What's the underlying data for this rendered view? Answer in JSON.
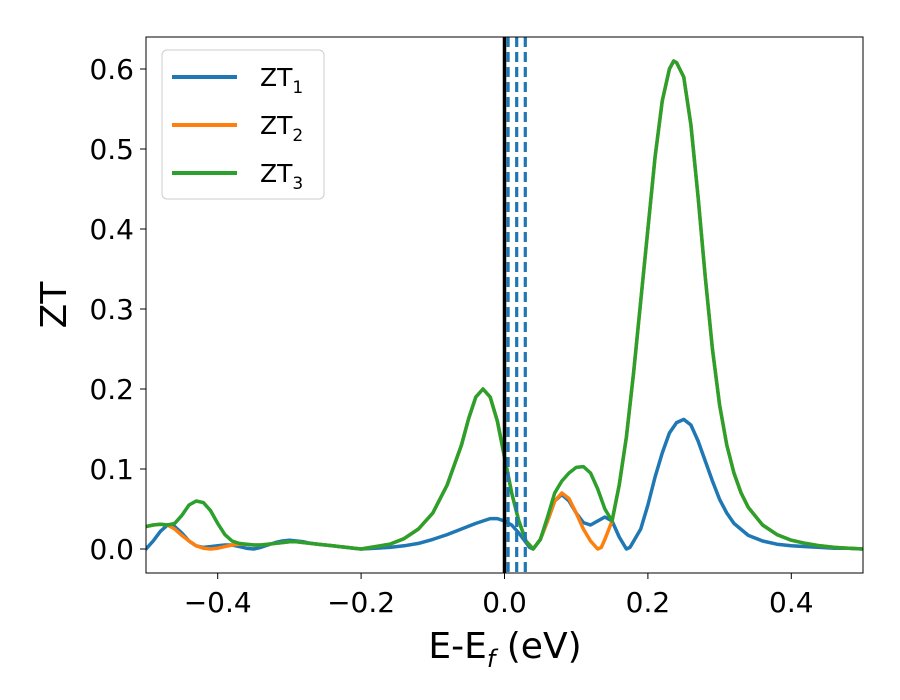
{
  "chart_data": {
    "type": "line",
    "title": "",
    "xlabel": "E-E_f (eV)",
    "xlabel_main": "E-E",
    "xlabel_sub": "f",
    "xlabel_unit": " (eV)",
    "ylabel": "ZT",
    "xlim": [
      -0.5,
      0.5
    ],
    "ylim": [
      -0.03,
      0.64
    ],
    "xticks": [
      -0.4,
      -0.2,
      0.0,
      0.2,
      0.4
    ],
    "xtick_labels": [
      "−0.4",
      "−0.2",
      "0.0",
      "0.2",
      "0.4"
    ],
    "yticks": [
      0.0,
      0.1,
      0.2,
      0.3,
      0.4,
      0.5,
      0.6
    ],
    "ytick_labels": [
      "0.0",
      "0.1",
      "0.2",
      "0.3",
      "0.4",
      "0.5",
      "0.6"
    ],
    "grid": false,
    "legend_position": "top-left",
    "vertical_lines": [
      {
        "x": 0.0,
        "style": "solid",
        "color": "#000000"
      },
      {
        "x": 0.005,
        "style": "dashed",
        "color": "#1f77b4"
      },
      {
        "x": 0.017,
        "style": "dashed",
        "color": "#1f77b4"
      },
      {
        "x": 0.029,
        "style": "dashed",
        "color": "#1f77b4"
      }
    ],
    "series": [
      {
        "name": "ZT_1",
        "legend_main": "ZT",
        "legend_sub": "1",
        "color": "#1f77b4",
        "points": [
          [
            -0.5,
            0.0
          ],
          [
            -0.49,
            0.01
          ],
          [
            -0.48,
            0.022
          ],
          [
            -0.47,
            0.03
          ],
          [
            -0.46,
            0.028
          ],
          [
            -0.45,
            0.02
          ],
          [
            -0.44,
            0.01
          ],
          [
            -0.43,
            0.004
          ],
          [
            -0.42,
            0.002
          ],
          [
            -0.41,
            0.003
          ],
          [
            -0.4,
            0.004
          ],
          [
            -0.39,
            0.005
          ],
          [
            -0.38,
            0.005
          ],
          [
            -0.37,
            0.003
          ],
          [
            -0.36,
            0.001
          ],
          [
            -0.35,
            0.0
          ],
          [
            -0.34,
            0.002
          ],
          [
            -0.33,
            0.005
          ],
          [
            -0.32,
            0.008
          ],
          [
            -0.31,
            0.01
          ],
          [
            -0.3,
            0.011
          ],
          [
            -0.29,
            0.01
          ],
          [
            -0.28,
            0.009
          ],
          [
            -0.27,
            0.007
          ],
          [
            -0.26,
            0.006
          ],
          [
            -0.25,
            0.005
          ],
          [
            -0.24,
            0.004
          ],
          [
            -0.23,
            0.003
          ],
          [
            -0.22,
            0.002
          ],
          [
            -0.21,
            0.001
          ],
          [
            -0.2,
            0.0
          ],
          [
            -0.18,
            0.001
          ],
          [
            -0.16,
            0.002
          ],
          [
            -0.14,
            0.004
          ],
          [
            -0.12,
            0.007
          ],
          [
            -0.1,
            0.012
          ],
          [
            -0.08,
            0.018
          ],
          [
            -0.06,
            0.025
          ],
          [
            -0.04,
            0.032
          ],
          [
            -0.03,
            0.035
          ],
          [
            -0.02,
            0.038
          ],
          [
            -0.01,
            0.038
          ],
          [
            0.0,
            0.035
          ],
          [
            0.01,
            0.03
          ],
          [
            0.02,
            0.02
          ],
          [
            0.03,
            0.008
          ],
          [
            0.035,
            0.002
          ],
          [
            0.04,
            0.0
          ],
          [
            0.05,
            0.012
          ],
          [
            0.06,
            0.035
          ],
          [
            0.07,
            0.06
          ],
          [
            0.08,
            0.068
          ],
          [
            0.09,
            0.06
          ],
          [
            0.1,
            0.045
          ],
          [
            0.11,
            0.033
          ],
          [
            0.12,
            0.03
          ],
          [
            0.13,
            0.035
          ],
          [
            0.14,
            0.04
          ],
          [
            0.15,
            0.035
          ],
          [
            0.16,
            0.015
          ],
          [
            0.17,
            0.0
          ],
          [
            0.175,
            0.002
          ],
          [
            0.19,
            0.025
          ],
          [
            0.2,
            0.055
          ],
          [
            0.21,
            0.09
          ],
          [
            0.22,
            0.12
          ],
          [
            0.23,
            0.145
          ],
          [
            0.24,
            0.158
          ],
          [
            0.25,
            0.162
          ],
          [
            0.26,
            0.155
          ],
          [
            0.27,
            0.135
          ],
          [
            0.28,
            0.11
          ],
          [
            0.29,
            0.085
          ],
          [
            0.3,
            0.062
          ],
          [
            0.31,
            0.045
          ],
          [
            0.32,
            0.032
          ],
          [
            0.34,
            0.017
          ],
          [
            0.36,
            0.01
          ],
          [
            0.38,
            0.006
          ],
          [
            0.4,
            0.004
          ],
          [
            0.42,
            0.003
          ],
          [
            0.44,
            0.002
          ],
          [
            0.46,
            0.001
          ],
          [
            0.48,
            0.001
          ],
          [
            0.5,
            0.0
          ]
        ]
      },
      {
        "name": "ZT_2",
        "legend_main": "ZT",
        "legend_sub": "2",
        "color": "#ff7f0e",
        "points": [
          [
            -0.5,
            0.028
          ],
          [
            -0.49,
            0.03
          ],
          [
            -0.48,
            0.031
          ],
          [
            -0.47,
            0.03
          ],
          [
            -0.46,
            0.025
          ],
          [
            -0.45,
            0.017
          ],
          [
            -0.44,
            0.01
          ],
          [
            -0.43,
            0.004
          ],
          [
            -0.42,
            0.001
          ],
          [
            -0.41,
            0.0
          ],
          [
            -0.4,
            0.001
          ],
          [
            -0.39,
            0.003
          ],
          [
            -0.38,
            0.005
          ],
          [
            -0.37,
            0.006
          ],
          [
            -0.36,
            0.006
          ],
          [
            -0.35,
            0.005
          ],
          [
            -0.34,
            0.005
          ],
          [
            -0.33,
            0.006
          ],
          [
            -0.32,
            0.007
          ],
          [
            -0.31,
            0.008
          ],
          [
            -0.3,
            0.009
          ],
          [
            -0.29,
            0.009
          ],
          [
            -0.28,
            0.008
          ],
          [
            -0.27,
            0.007
          ],
          [
            -0.26,
            0.006
          ],
          [
            -0.25,
            0.005
          ],
          [
            -0.24,
            0.004
          ],
          [
            -0.23,
            0.003
          ],
          [
            -0.22,
            0.002
          ],
          [
            -0.21,
            0.001
          ],
          [
            -0.2,
            0.0
          ],
          [
            -0.18,
            0.003
          ],
          [
            -0.16,
            0.006
          ],
          [
            -0.14,
            0.013
          ],
          [
            -0.12,
            0.025
          ],
          [
            -0.1,
            0.045
          ],
          [
            -0.08,
            0.08
          ],
          [
            -0.06,
            0.13
          ],
          [
            -0.05,
            0.163
          ],
          [
            -0.04,
            0.19
          ],
          [
            -0.03,
            0.2
          ],
          [
            -0.02,
            0.19
          ],
          [
            -0.01,
            0.16
          ],
          [
            0.0,
            0.115
          ],
          [
            0.01,
            0.07
          ],
          [
            0.02,
            0.035
          ],
          [
            0.03,
            0.01
          ],
          [
            0.04,
            0.0
          ],
          [
            0.05,
            0.012
          ],
          [
            0.06,
            0.035
          ],
          [
            0.07,
            0.06
          ],
          [
            0.08,
            0.07
          ],
          [
            0.09,
            0.063
          ],
          [
            0.1,
            0.045
          ],
          [
            0.11,
            0.025
          ],
          [
            0.12,
            0.01
          ],
          [
            0.13,
            0.0
          ],
          [
            0.135,
            0.002
          ],
          [
            0.14,
            0.012
          ],
          [
            0.15,
            0.035
          ],
          [
            0.16,
            0.08
          ],
          [
            0.17,
            0.14
          ],
          [
            0.18,
            0.22
          ],
          [
            0.19,
            0.31
          ],
          [
            0.2,
            0.4
          ],
          [
            0.21,
            0.49
          ],
          [
            0.22,
            0.56
          ],
          [
            0.23,
            0.6
          ],
          [
            0.236,
            0.61
          ],
          [
            0.24,
            0.608
          ],
          [
            0.25,
            0.59
          ],
          [
            0.26,
            0.53
          ],
          [
            0.27,
            0.44
          ],
          [
            0.28,
            0.34
          ],
          [
            0.29,
            0.25
          ],
          [
            0.3,
            0.18
          ],
          [
            0.31,
            0.13
          ],
          [
            0.32,
            0.095
          ],
          [
            0.33,
            0.07
          ],
          [
            0.34,
            0.052
          ],
          [
            0.36,
            0.03
          ],
          [
            0.38,
            0.018
          ],
          [
            0.4,
            0.011
          ],
          [
            0.42,
            0.007
          ],
          [
            0.44,
            0.004
          ],
          [
            0.46,
            0.002
          ],
          [
            0.48,
            0.001
          ],
          [
            0.5,
            0.0
          ]
        ]
      },
      {
        "name": "ZT_3",
        "legend_main": "ZT",
        "legend_sub": "3",
        "color": "#2ca02c",
        "points": [
          [
            -0.5,
            0.028
          ],
          [
            -0.49,
            0.03
          ],
          [
            -0.48,
            0.031
          ],
          [
            -0.47,
            0.03
          ],
          [
            -0.46,
            0.032
          ],
          [
            -0.45,
            0.042
          ],
          [
            -0.44,
            0.055
          ],
          [
            -0.43,
            0.06
          ],
          [
            -0.42,
            0.058
          ],
          [
            -0.41,
            0.048
          ],
          [
            -0.4,
            0.032
          ],
          [
            -0.39,
            0.018
          ],
          [
            -0.38,
            0.01
          ],
          [
            -0.37,
            0.007
          ],
          [
            -0.36,
            0.006
          ],
          [
            -0.35,
            0.005
          ],
          [
            -0.34,
            0.005
          ],
          [
            -0.33,
            0.006
          ],
          [
            -0.32,
            0.007
          ],
          [
            -0.31,
            0.008
          ],
          [
            -0.3,
            0.009
          ],
          [
            -0.29,
            0.009
          ],
          [
            -0.28,
            0.008
          ],
          [
            -0.27,
            0.007
          ],
          [
            -0.26,
            0.006
          ],
          [
            -0.25,
            0.005
          ],
          [
            -0.24,
            0.004
          ],
          [
            -0.23,
            0.003
          ],
          [
            -0.22,
            0.002
          ],
          [
            -0.21,
            0.001
          ],
          [
            -0.2,
            0.0
          ],
          [
            -0.18,
            0.003
          ],
          [
            -0.16,
            0.006
          ],
          [
            -0.14,
            0.013
          ],
          [
            -0.12,
            0.025
          ],
          [
            -0.1,
            0.045
          ],
          [
            -0.08,
            0.08
          ],
          [
            -0.06,
            0.13
          ],
          [
            -0.05,
            0.163
          ],
          [
            -0.04,
            0.19
          ],
          [
            -0.03,
            0.2
          ],
          [
            -0.02,
            0.19
          ],
          [
            -0.01,
            0.16
          ],
          [
            0.0,
            0.115
          ],
          [
            0.01,
            0.07
          ],
          [
            0.02,
            0.035
          ],
          [
            0.03,
            0.01
          ],
          [
            0.04,
            0.0
          ],
          [
            0.05,
            0.012
          ],
          [
            0.06,
            0.04
          ],
          [
            0.07,
            0.07
          ],
          [
            0.08,
            0.085
          ],
          [
            0.09,
            0.095
          ],
          [
            0.1,
            0.102
          ],
          [
            0.11,
            0.103
          ],
          [
            0.12,
            0.095
          ],
          [
            0.13,
            0.075
          ],
          [
            0.14,
            0.05
          ],
          [
            0.15,
            0.035
          ],
          [
            0.16,
            0.08
          ],
          [
            0.17,
            0.14
          ],
          [
            0.18,
            0.22
          ],
          [
            0.19,
            0.31
          ],
          [
            0.2,
            0.4
          ],
          [
            0.21,
            0.49
          ],
          [
            0.22,
            0.56
          ],
          [
            0.23,
            0.6
          ],
          [
            0.236,
            0.61
          ],
          [
            0.24,
            0.608
          ],
          [
            0.25,
            0.59
          ],
          [
            0.26,
            0.53
          ],
          [
            0.27,
            0.44
          ],
          [
            0.28,
            0.34
          ],
          [
            0.29,
            0.25
          ],
          [
            0.3,
            0.18
          ],
          [
            0.31,
            0.13
          ],
          [
            0.32,
            0.095
          ],
          [
            0.33,
            0.07
          ],
          [
            0.34,
            0.052
          ],
          [
            0.36,
            0.03
          ],
          [
            0.38,
            0.018
          ],
          [
            0.4,
            0.011
          ],
          [
            0.42,
            0.007
          ],
          [
            0.44,
            0.004
          ],
          [
            0.46,
            0.002
          ],
          [
            0.48,
            0.001
          ],
          [
            0.5,
            0.0
          ]
        ]
      }
    ]
  }
}
